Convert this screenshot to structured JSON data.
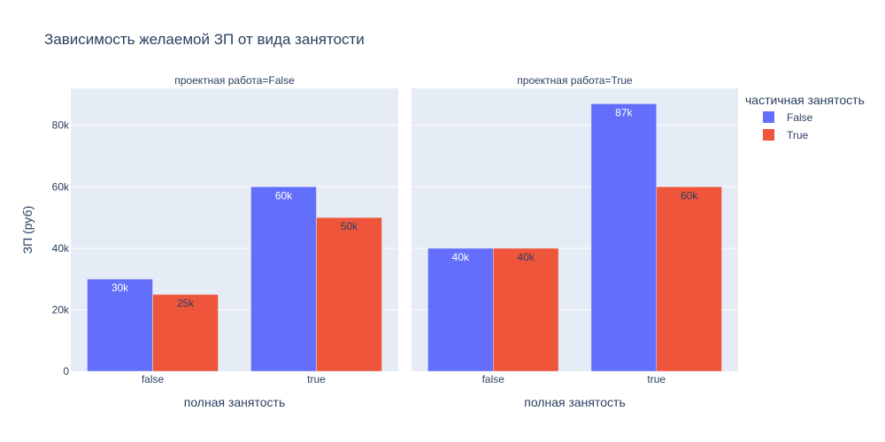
{
  "chart_data": {
    "type": "bar",
    "title": "Зависимость желаемой ЗП от  вида занятости",
    "ylabel": "ЗП (руб)",
    "ylim": [
      0,
      92000
    ],
    "y_ticks": [
      0,
      20000,
      40000,
      60000,
      80000
    ],
    "y_tick_labels": [
      "0",
      "20k",
      "40k",
      "60k",
      "80k"
    ],
    "legend": {
      "title": "частичная занятость",
      "position": "right",
      "entries": [
        "False",
        "True"
      ]
    },
    "colors": {
      "False": "#636efa",
      "True": "#ef553b",
      "plot_bg": "#e5ecf6"
    },
    "facets": [
      {
        "title": "проектная работа=False",
        "xlabel": "полная занятость",
        "categories": [
          "false",
          "true"
        ],
        "series": [
          {
            "name": "False",
            "values": [
              30000,
              60000
            ],
            "labels": [
              "30k",
              "60k"
            ]
          },
          {
            "name": "True",
            "values": [
              25000,
              50000
            ],
            "labels": [
              "25k",
              "50k"
            ]
          }
        ]
      },
      {
        "title": "проектная работа=True",
        "xlabel": "полная занятость",
        "categories": [
          "false",
          "true"
        ],
        "series": [
          {
            "name": "False",
            "values": [
              40000,
              87000
            ],
            "labels": [
              "40k",
              "87k"
            ]
          },
          {
            "name": "True",
            "values": [
              40000,
              60000
            ],
            "labels": [
              "40k",
              "60k"
            ]
          }
        ]
      }
    ],
    "grid": true
  }
}
